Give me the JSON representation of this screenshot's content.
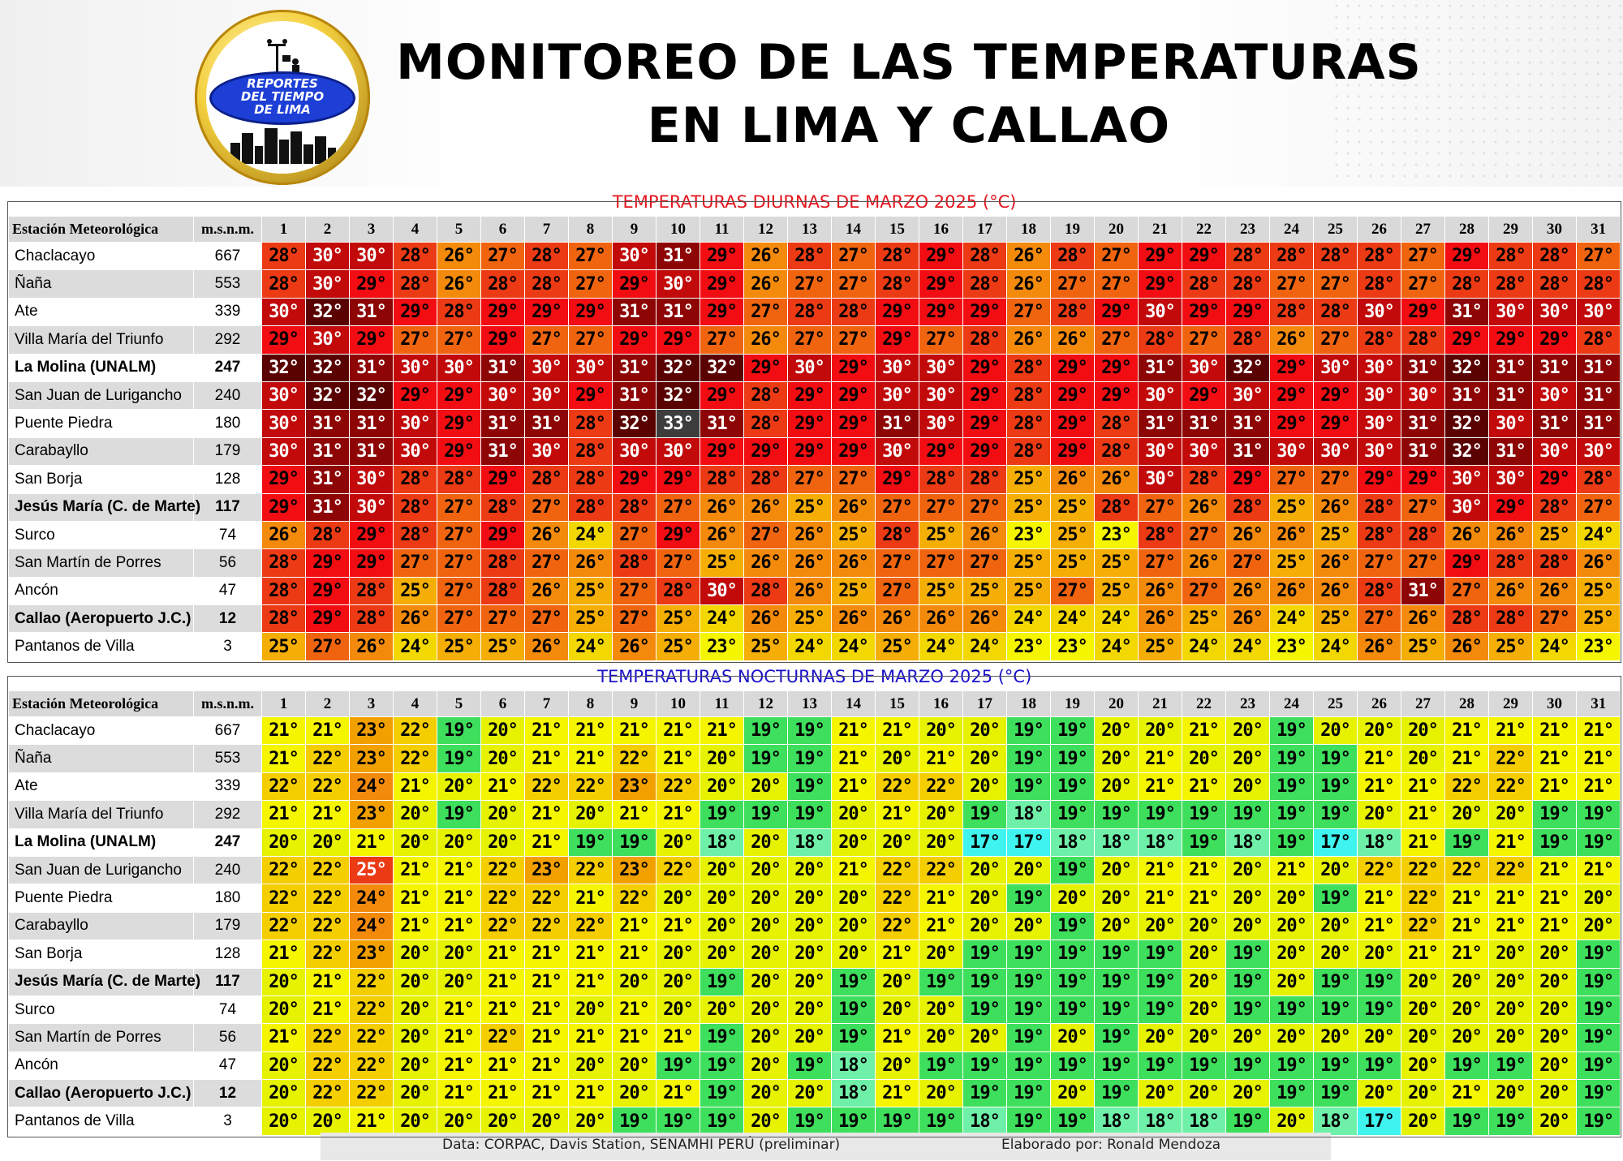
{
  "title": {
    "line1": "MONITOREO DE LAS TEMPERATURAS",
    "line2": "EN LIMA Y CALLAO"
  },
  "logo": {
    "line1": "REPORTES",
    "line2": "DEL TIEMPO",
    "line3": "DE LIMA"
  },
  "header": {
    "station": "Estación Meteorológica",
    "altitude": "m.s.n.m.",
    "days": [
      "1",
      "2",
      "3",
      "4",
      "5",
      "6",
      "7",
      "8",
      "9",
      "10",
      "11",
      "12",
      "13",
      "14",
      "15",
      "16",
      "17",
      "18",
      "19",
      "20",
      "21",
      "22",
      "23",
      "24",
      "25",
      "26",
      "27",
      "28",
      "29",
      "30",
      "31"
    ]
  },
  "stations": [
    {
      "name": "Chaclacayo",
      "alt": "667",
      "bold": false
    },
    {
      "name": "Ñaña",
      "alt": "553",
      "bold": false
    },
    {
      "name": "Ate",
      "alt": "339",
      "bold": false
    },
    {
      "name": "Villa María del Triunfo",
      "alt": "292",
      "bold": false
    },
    {
      "name": "La Molina (UNALM)",
      "alt": "247",
      "bold": true
    },
    {
      "name": "San Juan de Lurigancho",
      "alt": "240",
      "bold": false
    },
    {
      "name": "Puente Piedra",
      "alt": "180",
      "bold": false
    },
    {
      "name": "Carabayllo",
      "alt": "179",
      "bold": false
    },
    {
      "name": "San Borja",
      "alt": "128",
      "bold": false
    },
    {
      "name": "Jesús María (C. de Marte)",
      "alt": "117",
      "bold": true
    },
    {
      "name": "Surco",
      "alt": "74",
      "bold": false
    },
    {
      "name": "San Martín de Porres",
      "alt": "56",
      "bold": false
    },
    {
      "name": "Ancón",
      "alt": "47",
      "bold": false
    },
    {
      "name": "Callao (Aeropuerto J.C.)",
      "alt": "12",
      "bold": true
    },
    {
      "name": "Pantanos de Villa",
      "alt": "3",
      "bold": false
    }
  ],
  "unit": "°",
  "footer": {
    "source": "Data: CORPAC, Davis Station, SENAMHI PERÚ (preliminar)",
    "author": "Elaborado por: Ronald Mendoza"
  },
  "colors": {
    "title_red": "#e3141c",
    "title_blue": "#1a10c8"
  },
  "chart_data": [
    {
      "type": "heatmap",
      "title": "TEMPERATURAS DIURNAS DE MARZO 2025 (°C)",
      "x": [
        "1",
        "2",
        "3",
        "4",
        "5",
        "6",
        "7",
        "8",
        "9",
        "10",
        "11",
        "12",
        "13",
        "14",
        "15",
        "16",
        "17",
        "18",
        "19",
        "20",
        "21",
        "22",
        "23",
        "24",
        "25",
        "26",
        "27",
        "28",
        "29",
        "30",
        "31"
      ],
      "y": [
        "Chaclacayo",
        "Ñaña",
        "Ate",
        "Villa María del Triunfo",
        "La Molina (UNALM)",
        "San Juan de Lurigancho",
        "Puente Piedra",
        "Carabayllo",
        "San Borja",
        "Jesús María (C. de Marte)",
        "Surco",
        "San Martín de Porres",
        "Ancón",
        "Callao (Aeropuerto J.C.)",
        "Pantanos de Villa"
      ],
      "values": [
        [
          28,
          30,
          30,
          28,
          26,
          27,
          28,
          27,
          30,
          31,
          29,
          26,
          28,
          27,
          28,
          29,
          28,
          26,
          28,
          27,
          29,
          29,
          28,
          28,
          28,
          28,
          27,
          29,
          28,
          28,
          27
        ],
        [
          28,
          30,
          29,
          28,
          26,
          28,
          28,
          27,
          29,
          30,
          29,
          26,
          27,
          27,
          28,
          29,
          28,
          26,
          27,
          27,
          29,
          28,
          28,
          27,
          27,
          28,
          27,
          28,
          28,
          28,
          28
        ],
        [
          30,
          32,
          31,
          29,
          28,
          29,
          29,
          29,
          31,
          31,
          29,
          27,
          28,
          28,
          29,
          29,
          29,
          27,
          28,
          29,
          30,
          29,
          29,
          28,
          28,
          30,
          29,
          31,
          30,
          30,
          30
        ],
        [
          29,
          30,
          29,
          27,
          27,
          29,
          27,
          27,
          29,
          29,
          27,
          26,
          27,
          27,
          29,
          27,
          28,
          26,
          26,
          27,
          28,
          27,
          28,
          26,
          27,
          28,
          28,
          29,
          29,
          29,
          28
        ],
        [
          32,
          32,
          31,
          30,
          30,
          31,
          30,
          30,
          31,
          32,
          32,
          29,
          30,
          29,
          30,
          30,
          29,
          28,
          29,
          29,
          31,
          30,
          32,
          29,
          30,
          30,
          31,
          32,
          31,
          31,
          31
        ],
        [
          30,
          32,
          32,
          29,
          29,
          30,
          30,
          29,
          31,
          32,
          29,
          28,
          29,
          29,
          30,
          30,
          29,
          28,
          29,
          29,
          30,
          29,
          30,
          29,
          29,
          30,
          30,
          31,
          31,
          30,
          31
        ],
        [
          30,
          31,
          31,
          30,
          29,
          31,
          31,
          28,
          32,
          33,
          31,
          28,
          29,
          29,
          31,
          30,
          29,
          28,
          29,
          28,
          31,
          31,
          31,
          29,
          29,
          30,
          31,
          32,
          30,
          31,
          31
        ],
        [
          30,
          31,
          31,
          30,
          29,
          31,
          30,
          28,
          30,
          30,
          29,
          29,
          29,
          29,
          30,
          29,
          29,
          28,
          29,
          28,
          30,
          30,
          31,
          30,
          30,
          30,
          31,
          32,
          31,
          30,
          30
        ],
        [
          29,
          31,
          30,
          28,
          28,
          29,
          28,
          28,
          29,
          29,
          28,
          28,
          27,
          27,
          29,
          28,
          28,
          25,
          26,
          26,
          30,
          28,
          29,
          27,
          27,
          29,
          29,
          30,
          30,
          29,
          28
        ],
        [
          29,
          31,
          30,
          28,
          27,
          28,
          27,
          28,
          28,
          27,
          26,
          26,
          25,
          26,
          27,
          27,
          27,
          25,
          25,
          28,
          27,
          26,
          28,
          25,
          26,
          28,
          27,
          30,
          29,
          28,
          27
        ],
        [
          26,
          28,
          29,
          28,
          27,
          29,
          26,
          24,
          27,
          29,
          26,
          27,
          26,
          25,
          28,
          25,
          26,
          23,
          25,
          23,
          28,
          27,
          26,
          26,
          25,
          28,
          28,
          26,
          26,
          25,
          24
        ],
        [
          28,
          29,
          29,
          27,
          27,
          28,
          27,
          26,
          28,
          27,
          25,
          26,
          26,
          26,
          27,
          27,
          27,
          25,
          25,
          25,
          27,
          26,
          27,
          25,
          26,
          27,
          27,
          29,
          28,
          28,
          26
        ],
        [
          28,
          29,
          28,
          25,
          27,
          28,
          26,
          25,
          27,
          28,
          30,
          28,
          26,
          25,
          27,
          25,
          25,
          25,
          27,
          25,
          26,
          27,
          26,
          26,
          26,
          28,
          31,
          27,
          26,
          26,
          25
        ],
        [
          28,
          29,
          28,
          26,
          27,
          27,
          27,
          25,
          27,
          25,
          24,
          26,
          25,
          26,
          26,
          26,
          26,
          24,
          24,
          24,
          26,
          25,
          26,
          24,
          25,
          27,
          26,
          28,
          28,
          27,
          25
        ],
        [
          25,
          27,
          26,
          24,
          25,
          25,
          26,
          24,
          26,
          25,
          23,
          25,
          24,
          24,
          25,
          24,
          24,
          23,
          23,
          24,
          25,
          24,
          24,
          23,
          24,
          26,
          25,
          26,
          25,
          24,
          23
        ]
      ]
    },
    {
      "type": "heatmap",
      "title": "TEMPERATURAS NOCTURNAS DE MARZO 2025 (°C)",
      "x": [
        "1",
        "2",
        "3",
        "4",
        "5",
        "6",
        "7",
        "8",
        "9",
        "10",
        "11",
        "12",
        "13",
        "14",
        "15",
        "16",
        "17",
        "18",
        "19",
        "20",
        "21",
        "22",
        "23",
        "24",
        "25",
        "26",
        "27",
        "28",
        "29",
        "30",
        "31"
      ],
      "y": [
        "Chaclacayo",
        "Ñaña",
        "Ate",
        "Villa María del Triunfo",
        "La Molina (UNALM)",
        "San Juan de Lurigancho",
        "Puente Piedra",
        "Carabayllo",
        "San Borja",
        "Jesús María (C. de Marte)",
        "Surco",
        "San Martín de Porres",
        "Ancón",
        "Callao (Aeropuerto J.C.)",
        "Pantanos de Villa"
      ],
      "values": [
        [
          21,
          21,
          23,
          22,
          19,
          20,
          21,
          21,
          21,
          21,
          21,
          19,
          19,
          21,
          21,
          20,
          20,
          19,
          19,
          20,
          20,
          21,
          20,
          19,
          20,
          20,
          20,
          21,
          21,
          21,
          21
        ],
        [
          21,
          22,
          23,
          22,
          19,
          20,
          21,
          21,
          22,
          21,
          20,
          19,
          19,
          21,
          20,
          21,
          20,
          19,
          19,
          20,
          21,
          20,
          20,
          19,
          19,
          21,
          20,
          21,
          22,
          21,
          21
        ],
        [
          22,
          22,
          24,
          21,
          20,
          21,
          22,
          22,
          23,
          22,
          20,
          20,
          19,
          21,
          22,
          22,
          20,
          19,
          19,
          20,
          21,
          21,
          20,
          19,
          19,
          21,
          21,
          22,
          22,
          21,
          21
        ],
        [
          21,
          21,
          23,
          20,
          19,
          20,
          21,
          20,
          21,
          21,
          19,
          19,
          19,
          20,
          21,
          20,
          19,
          18,
          19,
          19,
          19,
          19,
          19,
          19,
          19,
          20,
          21,
          20,
          20,
          19,
          19
        ],
        [
          20,
          20,
          21,
          20,
          20,
          20,
          21,
          19,
          19,
          20,
          18,
          20,
          18,
          20,
          20,
          20,
          17,
          17,
          18,
          18,
          18,
          19,
          18,
          19,
          17,
          18,
          21,
          19,
          21,
          19,
          19
        ],
        [
          22,
          22,
          25,
          21,
          21,
          22,
          23,
          22,
          23,
          22,
          20,
          20,
          20,
          21,
          22,
          22,
          20,
          20,
          19,
          20,
          21,
          21,
          20,
          21,
          20,
          22,
          22,
          22,
          22,
          21,
          21
        ],
        [
          22,
          22,
          24,
          21,
          21,
          22,
          22,
          21,
          22,
          20,
          20,
          20,
          20,
          20,
          22,
          21,
          20,
          19,
          20,
          20,
          21,
          21,
          20,
          20,
          19,
          21,
          22,
          21,
          21,
          21,
          20
        ],
        [
          22,
          22,
          24,
          21,
          21,
          22,
          22,
          22,
          21,
          21,
          20,
          20,
          20,
          20,
          22,
          21,
          20,
          20,
          19,
          20,
          20,
          20,
          20,
          20,
          20,
          21,
          22,
          21,
          21,
          21,
          20
        ],
        [
          21,
          22,
          23,
          20,
          20,
          21,
          21,
          21,
          21,
          20,
          20,
          20,
          20,
          20,
          21,
          20,
          19,
          19,
          19,
          19,
          19,
          20,
          19,
          20,
          20,
          20,
          21,
          21,
          20,
          20,
          19
        ],
        [
          20,
          21,
          22,
          20,
          20,
          21,
          21,
          21,
          20,
          20,
          19,
          20,
          20,
          19,
          20,
          19,
          19,
          19,
          19,
          19,
          19,
          20,
          19,
          20,
          19,
          19,
          20,
          20,
          20,
          20,
          19
        ],
        [
          20,
          21,
          22,
          20,
          21,
          21,
          21,
          20,
          21,
          20,
          20,
          20,
          20,
          19,
          20,
          20,
          19,
          19,
          19,
          19,
          19,
          20,
          19,
          19,
          19,
          19,
          20,
          20,
          20,
          20,
          19
        ],
        [
          21,
          22,
          22,
          20,
          21,
          22,
          21,
          21,
          21,
          21,
          19,
          20,
          20,
          19,
          21,
          20,
          20,
          19,
          20,
          19,
          20,
          20,
          20,
          20,
          20,
          20,
          20,
          20,
          20,
          20,
          19
        ],
        [
          20,
          22,
          22,
          20,
          21,
          21,
          21,
          20,
          20,
          19,
          19,
          20,
          19,
          18,
          20,
          19,
          19,
          19,
          19,
          19,
          19,
          19,
          19,
          19,
          19,
          19,
          20,
          19,
          19,
          20,
          19
        ],
        [
          20,
          22,
          22,
          20,
          21,
          21,
          21,
          21,
          20,
          21,
          19,
          20,
          20,
          18,
          21,
          20,
          19,
          19,
          20,
          19,
          20,
          20,
          20,
          19,
          19,
          20,
          20,
          21,
          20,
          20,
          19
        ],
        [
          20,
          20,
          21,
          20,
          20,
          20,
          20,
          20,
          19,
          19,
          19,
          20,
          19,
          19,
          19,
          19,
          18,
          19,
          19,
          18,
          18,
          18,
          19,
          20,
          18,
          17,
          20,
          19,
          19,
          20,
          19
        ]
      ]
    }
  ]
}
